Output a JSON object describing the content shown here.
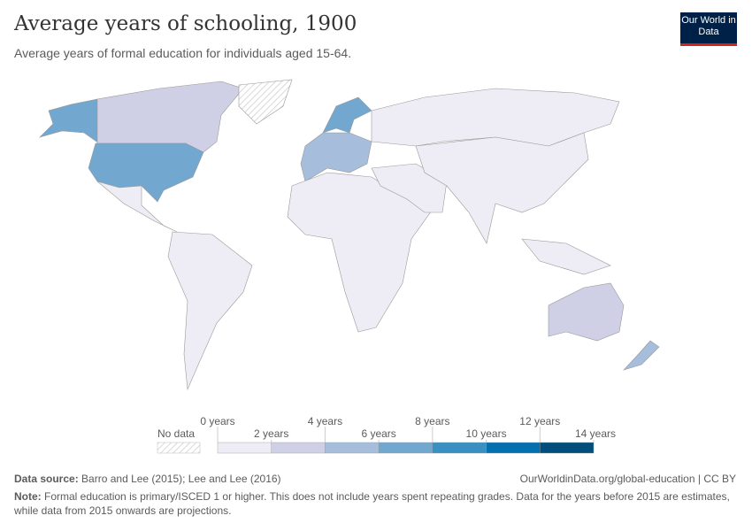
{
  "header": {
    "title": "Average years of schooling, 1900",
    "subtitle": "Average years of formal education for individuals aged 15-64.",
    "logo": "Our World in Data"
  },
  "legend": {
    "no_data": "No data",
    "bins": [
      0,
      2,
      4,
      6,
      8,
      10,
      12,
      14
    ],
    "unit": "years",
    "labels": [
      "0 years",
      "2 years",
      "4 years",
      "6 years",
      "8 years",
      "10 years",
      "12 years",
      "14 years"
    ],
    "colors": [
      "#eeedf5",
      "#cfd0e6",
      "#a6bddb",
      "#72a8cf",
      "#3a90c0",
      "#0570b0",
      "#034e7b"
    ]
  },
  "map_values": {
    "north_america_usa": "#72a8cf",
    "alaska": "#72a8cf",
    "canada": "#cfd0e6",
    "greenland": "none",
    "scandinavia": "#72a8cf",
    "western_europe": "#a6bddb",
    "russia": "#eeedf5",
    "australia": "#cfd0e6",
    "new_zealand": "#a6bddb",
    "default": "#eeedf5"
  },
  "footer": {
    "source_label": "Data source:",
    "source": "Barro and Lee (2015); Lee and Lee (2016)",
    "url": "OurWorldinData.org/global-education | CC BY",
    "note_label": "Note:",
    "note": "Formal education is primary/ISCED 1 or higher. This does not include years spent repeating grades. Data for the years before 2015 are estimates, while data from 2015 onwards are projections."
  }
}
